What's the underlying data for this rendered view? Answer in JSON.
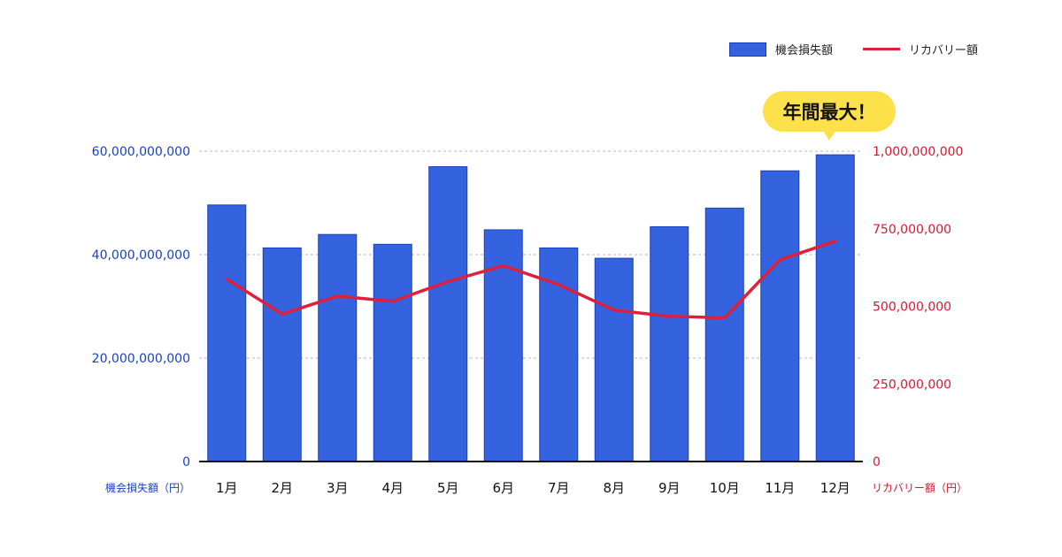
{
  "chart_data": {
    "type": "bar",
    "categories": [
      "1月",
      "2月",
      "3月",
      "4月",
      "5月",
      "6月",
      "7月",
      "8月",
      "9月",
      "10月",
      "11月",
      "12月"
    ],
    "series": [
      {
        "name": "機会損失額",
        "type": "bar",
        "axis": "left",
        "values": [
          49600000000,
          41300000000,
          43900000000,
          42000000000,
          57000000000,
          44800000000,
          41300000000,
          39300000000,
          45400000000,
          49000000000,
          56200000000,
          59300000000
        ]
      },
      {
        "name": "リカバリー額",
        "type": "line",
        "axis": "right",
        "values": [
          588000000,
          475000000,
          533000000,
          516000000,
          580000000,
          631000000,
          570000000,
          488000000,
          468000000,
          463000000,
          650000000,
          710000000
        ]
      }
    ],
    "left_axis": {
      "label": "機会損失額（円）",
      "ylim": [
        0,
        60000000000
      ],
      "ticks": [
        "0",
        "20,000,000,000",
        "40,000,000,000",
        "60,000,000,000"
      ],
      "color": "#1a3fc7"
    },
    "right_axis": {
      "label": "リカバリー額（円）",
      "ylim": [
        0,
        1000000000
      ],
      "ticks": [
        "0",
        "250,000,000",
        "500,000,000",
        "750,000,000",
        "1,000,000,000"
      ],
      "color": "#d9182e"
    },
    "grid": "horizontal dashed",
    "legend_position": "top-right",
    "annotation": "年間最大！",
    "colors": {
      "bar": "#3563e0",
      "bar_border": "#1b3fb8",
      "line": "#e0203a",
      "highlight": "#fde14a"
    }
  }
}
